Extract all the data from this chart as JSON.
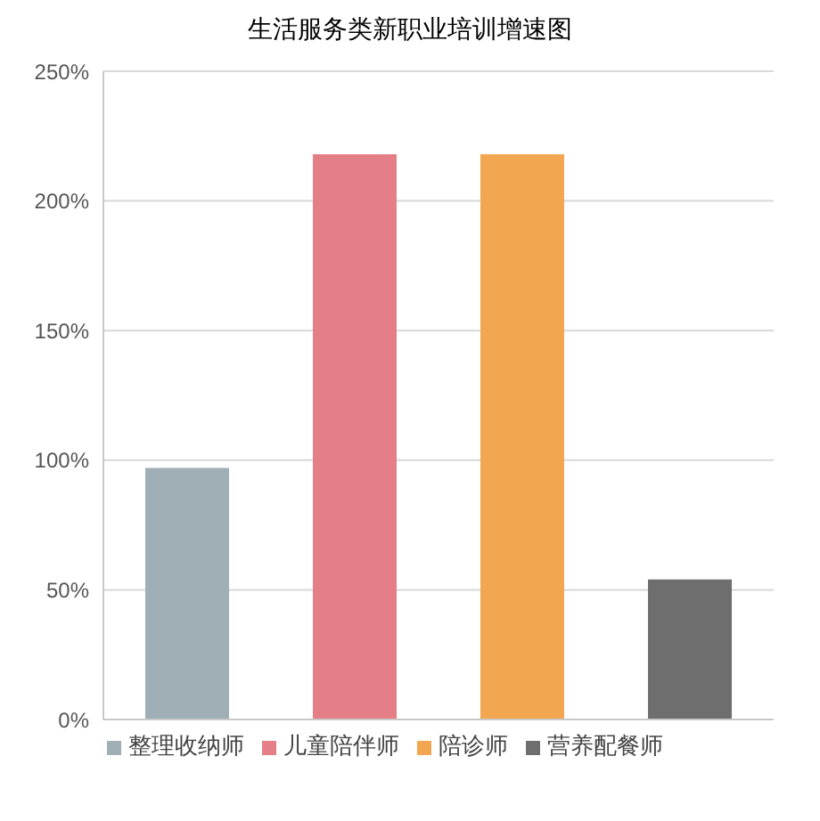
{
  "chart_data": {
    "type": "bar",
    "title": "生活服务类新职业培训增速图",
    "categories": [
      null,
      null,
      null,
      null
    ],
    "series": [
      {
        "name": "整理收纳师",
        "color": "#a0aeb5",
        "values": [
          97,
          null,
          null,
          null
        ]
      },
      {
        "name": "儿童陪伴师",
        "color": "#e57f87",
        "values": [
          null,
          218,
          null,
          null
        ]
      },
      {
        "name": "陪诊师",
        "color": "#f2a650",
        "values": [
          null,
          null,
          218,
          null
        ]
      },
      {
        "name": "营养配餐师",
        "color": "#6e6e6e",
        "values": [
          null,
          null,
          null,
          54
        ]
      }
    ],
    "stacked": true,
    "ylim": [
      0,
      250
    ],
    "yticks": [
      {
        "value": 0,
        "label": "0%"
      },
      {
        "value": 50,
        "label": "50%"
      },
      {
        "value": 100,
        "label": "100%"
      },
      {
        "value": 150,
        "label": "150%"
      },
      {
        "value": 200,
        "label": "200%"
      },
      {
        "value": 250,
        "label": "250%"
      }
    ],
    "grid": "y",
    "legend": "bottom",
    "tick_labels": "y"
  }
}
